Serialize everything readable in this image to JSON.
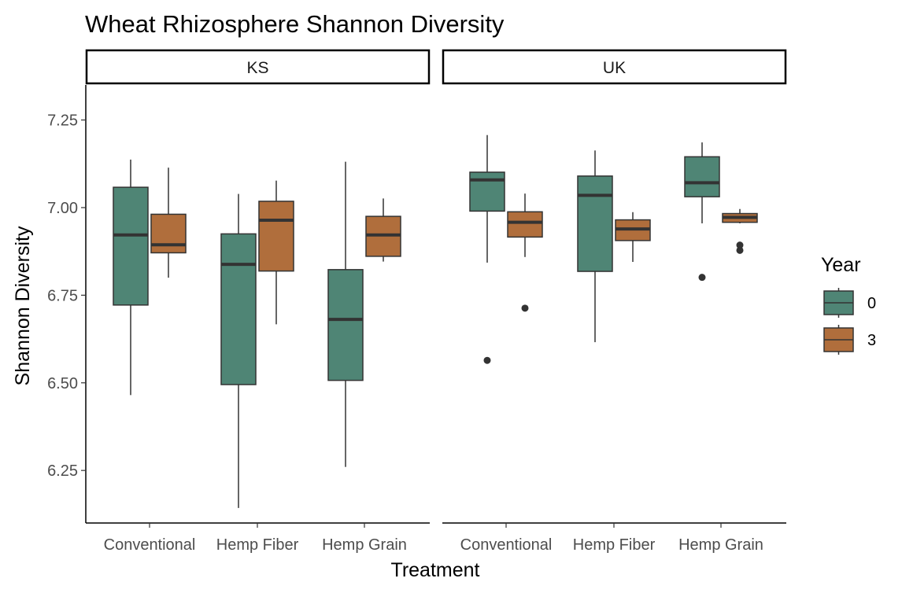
{
  "chart_data": {
    "type": "boxplot",
    "title": "Wheat Rhizosphere Shannon Diversity",
    "xlabel": "Treatment",
    "ylabel": "Shannon Diversity",
    "ylim": [
      6.1,
      7.35
    ],
    "yticks": [
      "6.25",
      "6.50",
      "6.75",
      "7.00",
      "7.25"
    ],
    "categories": [
      "Conventional",
      "Hemp Fiber",
      "Hemp Grain"
    ],
    "facets": [
      "KS",
      "UK"
    ],
    "legend": {
      "title": "Year",
      "placement": "right",
      "entries": [
        {
          "label": "0",
          "color": "#4f8575"
        },
        {
          "label": "3",
          "color": "#b06e3c"
        }
      ]
    },
    "series": [
      {
        "facet": "KS",
        "category": "Conventional",
        "year": "0",
        "min": 6.465,
        "q1": 6.722,
        "median": 6.922,
        "q3": 7.058,
        "max": 7.137,
        "outliers": []
      },
      {
        "facet": "KS",
        "category": "Conventional",
        "year": "3",
        "min": 6.8,
        "q1": 6.871,
        "median": 6.894,
        "q3": 6.981,
        "max": 7.114,
        "outliers": []
      },
      {
        "facet": "KS",
        "category": "Hemp Fiber",
        "year": "0",
        "min": 6.143,
        "q1": 6.495,
        "median": 6.838,
        "q3": 6.925,
        "max": 7.039,
        "outliers": []
      },
      {
        "facet": "KS",
        "category": "Hemp Fiber",
        "year": "3",
        "min": 6.667,
        "q1": 6.819,
        "median": 6.964,
        "q3": 7.018,
        "max": 7.077,
        "outliers": []
      },
      {
        "facet": "KS",
        "category": "Hemp Grain",
        "year": "0",
        "min": 6.26,
        "q1": 6.507,
        "median": 6.681,
        "q3": 6.823,
        "max": 7.131,
        "outliers": []
      },
      {
        "facet": "KS",
        "category": "Hemp Grain",
        "year": "3",
        "min": 6.846,
        "q1": 6.861,
        "median": 6.922,
        "q3": 6.975,
        "max": 7.026,
        "outliers": []
      },
      {
        "facet": "UK",
        "category": "Conventional",
        "year": "0",
        "min": 6.843,
        "q1": 6.99,
        "median": 7.079,
        "q3": 7.101,
        "max": 7.207,
        "outliers": [
          6.564
        ]
      },
      {
        "facet": "UK",
        "category": "Conventional",
        "year": "3",
        "min": 6.859,
        "q1": 6.916,
        "median": 6.958,
        "q3": 6.988,
        "max": 7.04,
        "outliers": [
          6.713
        ]
      },
      {
        "facet": "UK",
        "category": "Hemp Fiber",
        "year": "0",
        "min": 6.616,
        "q1": 6.818,
        "median": 7.035,
        "q3": 7.09,
        "max": 7.163,
        "outliers": []
      },
      {
        "facet": "UK",
        "category": "Hemp Fiber",
        "year": "3",
        "min": 6.845,
        "q1": 6.906,
        "median": 6.939,
        "q3": 6.965,
        "max": 6.987,
        "outliers": []
      },
      {
        "facet": "UK",
        "category": "Hemp Grain",
        "year": "0",
        "min": 6.955,
        "q1": 7.031,
        "median": 7.071,
        "q3": 7.145,
        "max": 7.186,
        "outliers": [
          6.801
        ]
      },
      {
        "facet": "UK",
        "category": "Hemp Grain",
        "year": "3",
        "min": 6.955,
        "q1": 6.958,
        "median": 6.972,
        "q3": 6.983,
        "max": 6.996,
        "outliers": [
          6.878,
          6.893
        ]
      }
    ]
  }
}
